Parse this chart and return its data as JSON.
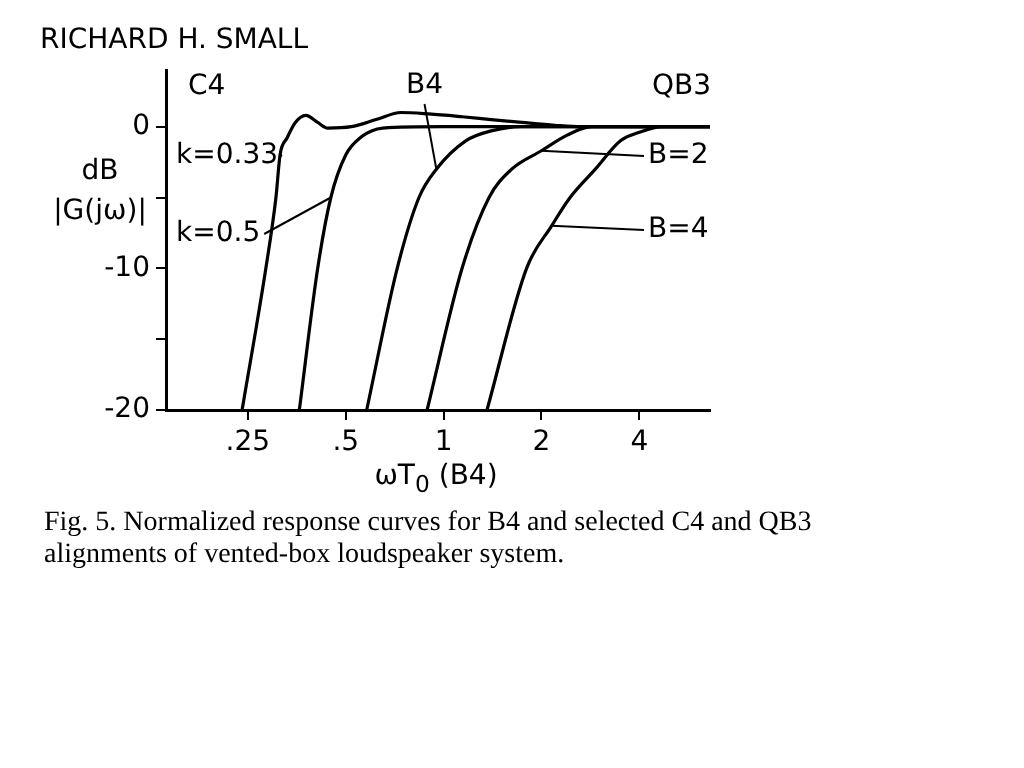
{
  "chart_data": {
    "type": "line",
    "title": "Fig. 5. Normalized response curves for B4 and selected C4 and QB3 alignments of vented-box loudspeaker system.",
    "xlabel": "ωT$_{0}$ (B4)",
    "ylabel": "dB |G(jω)|",
    "annotations": [
      "RICHARD H. SMALL",
      "C4",
      "QB3"
    ],
    "log": "x",
    "grid": false,
    "legend": "right",
    "marker": "none",
    "line_style": "solid",
    "xlim": [
      0.14,
      6.6
    ],
    "xticks": [
      {
        "value": 0.25,
        "label": ".25"
      },
      {
        "value": 0.5,
        "label": ".5"
      },
      1,
      2,
      4
    ],
    "ylim": [
      -20,
      4
    ],
    "yticks": [
      -20,
      {
        "value": -15,
        "label": null
      },
      -10,
      {
        "value": -5,
        "label": null
      },
      0
    ],
    "series": [
      {
        "name": "k=0.33",
        "color": "#000000",
        "x": [
          0.24,
          0.284,
          0.305,
          0.314,
          0.33,
          0.35,
          0.377,
          0.41,
          0.44,
          0.52,
          0.62,
          0.74,
          0.9,
          1.14,
          1.4,
          1.74,
          2.2,
          2.65,
          6.6
        ],
        "values": [
          -20,
          -10,
          -5,
          -2,
          -0.8,
          0.3,
          0.8,
          0.3,
          -0.1,
          0,
          0.5,
          1.0,
          0.9,
          0.7,
          0.5,
          0.3,
          0.1,
          0,
          0
        ]
      },
      {
        "name": "k=0.5",
        "color": "#000000",
        "x": [
          0.36,
          0.41,
          0.45,
          0.5,
          0.56,
          0.6,
          0.65,
          1,
          2,
          6.6
        ],
        "values": [
          -20,
          -10,
          -5,
          -2,
          -0.7,
          -0.3,
          -0.1,
          0,
          0,
          0
        ]
      },
      {
        "name": "B4",
        "color": "#000000",
        "x": [
          0.58,
          0.72,
          0.84,
          0.95,
          1.17,
          1.4,
          1.74,
          6.6
        ],
        "values": [
          -20,
          -10,
          -5,
          -3,
          -1,
          -0.3,
          0,
          0
        ]
      },
      {
        "name": "B=2",
        "color": "#000000",
        "x": [
          0.89,
          1.14,
          1.38,
          1.62,
          2.0,
          2.4,
          2.85,
          6.6
        ],
        "values": [
          -20,
          -10,
          -5,
          -3,
          -1.7,
          -0.6,
          0,
          0
        ]
      },
      {
        "name": "B=4",
        "color": "#000000",
        "x": [
          1.36,
          1.8,
          2.15,
          2.45,
          2.93,
          3.5,
          4.0,
          4.7,
          6.6
        ],
        "values": [
          -20,
          -10,
          -7,
          -5,
          -3,
          -1,
          -0.4,
          0,
          0
        ]
      }
    ]
  }
}
